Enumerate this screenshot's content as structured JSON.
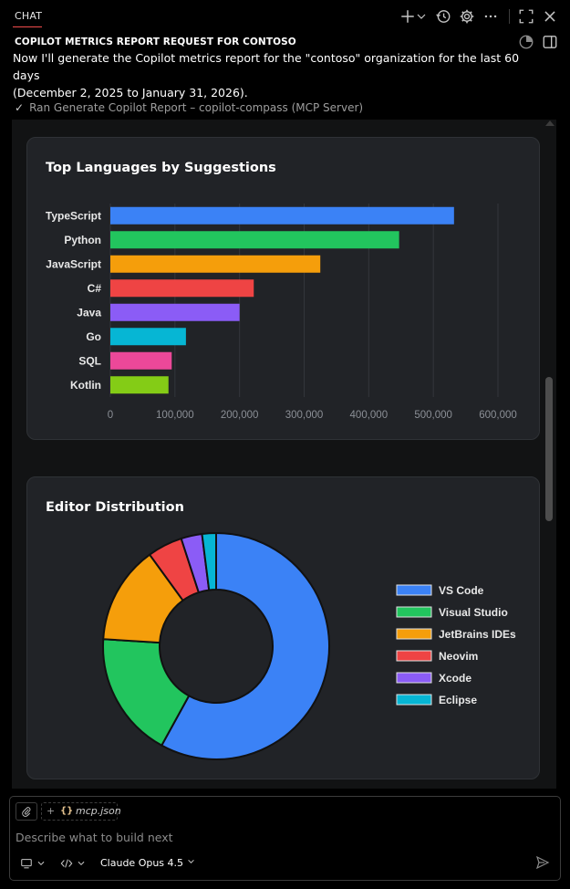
{
  "tab": {
    "label": "CHAT"
  },
  "toolbar_icons": [
    "plus-icon",
    "chevron-down-icon",
    "history-icon",
    "gear-icon",
    "more-icon",
    "maximize-icon",
    "close-icon",
    "pie-icon",
    "panel-toggle-icon"
  ],
  "report_title": "COPILOT METRICS REPORT REQUEST FOR CONTOSO",
  "message_line1": "Now I'll generate the Copilot metrics report for the \"contoso\" organization for the last 60 days",
  "message_line2": "(December 2, 2025 to January 31, 2026).",
  "tool_run": {
    "text": "Ran Generate Copilot Report – copilot-compass (MCP Server)"
  },
  "chart_data": [
    {
      "type": "bar",
      "orientation": "horizontal",
      "title": "Top Languages by Suggestions",
      "categories": [
        "TypeScript",
        "Python",
        "JavaScript",
        "C#",
        "Java",
        "Go",
        "SQL",
        "Kotlin"
      ],
      "values": [
        532000,
        447000,
        325000,
        222000,
        200000,
        117000,
        95000,
        90000
      ],
      "colors": [
        "#3b82f6",
        "#22c55e",
        "#f59e0b",
        "#ef4444",
        "#8b5cf6",
        "#06b6d4",
        "#ec4899",
        "#84cc16"
      ],
      "xlim": [
        0,
        600000
      ],
      "xticks": [
        "0",
        "100,000",
        "200,000",
        "300,000",
        "400,000",
        "500,000",
        "600,000"
      ],
      "grid": true
    },
    {
      "type": "pie",
      "donut": true,
      "title": "Editor Distribution",
      "labels": [
        "VS Code",
        "Visual Studio",
        "JetBrains IDEs",
        "Neovim",
        "Xcode",
        "Eclipse"
      ],
      "values": [
        58,
        18,
        14,
        5,
        3,
        2
      ],
      "colors": [
        "#3b82f6",
        "#22c55e",
        "#f59e0b",
        "#ef4444",
        "#8b5cf6",
        "#06b6d4"
      ],
      "legend": "right"
    }
  ],
  "input": {
    "context_file": "mcp.json",
    "placeholder": "Describe what to build next",
    "model": "Claude Opus 4.5"
  }
}
